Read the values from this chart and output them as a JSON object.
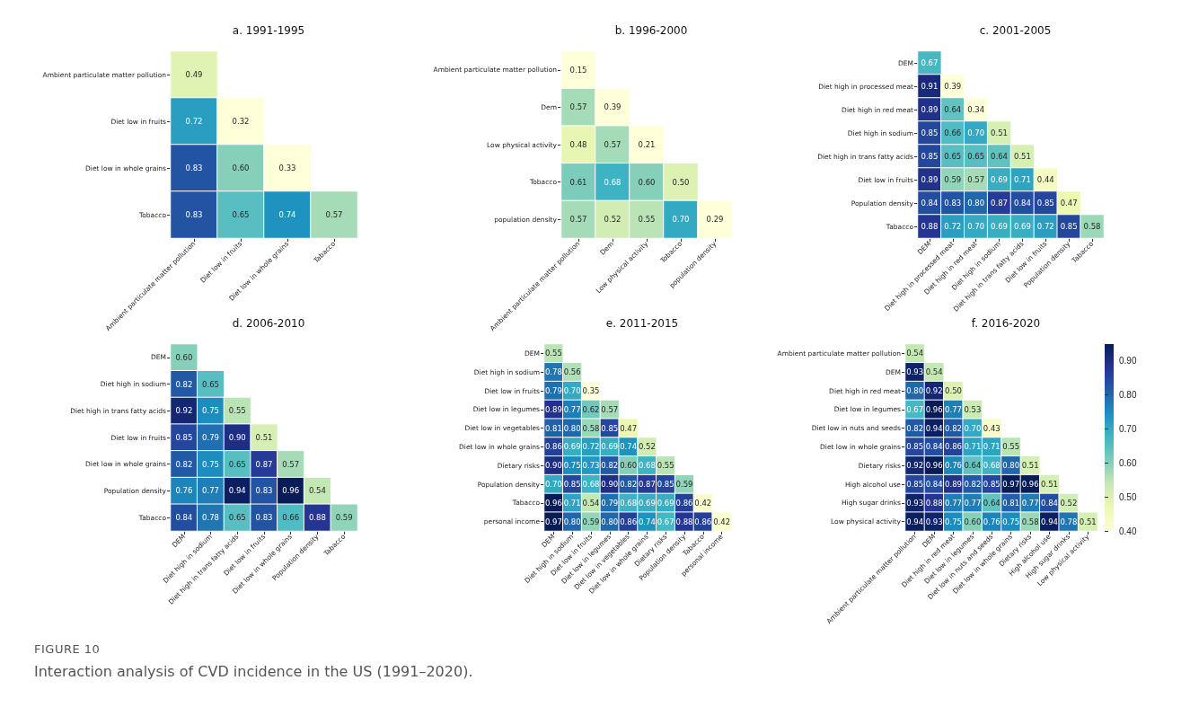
{
  "chart_data": [
    {
      "type": "heatmap",
      "title": "a. 1991-1995",
      "data_labels": true,
      "categories": [
        "Ambient particulate matter pollution",
        "Diet low in fruits",
        "Diet low in whole grains",
        "Tabacco"
      ],
      "y_categories": [
        "Ambient particulate matter pollution",
        "Diet low in fruits",
        "Diet low in whole grains",
        "Tobacco"
      ],
      "cells": [
        [
          0.49,
          null,
          null,
          null
        ],
        [
          0.72,
          0.32,
          null,
          null
        ],
        [
          0.83,
          0.6,
          0.33,
          null
        ],
        [
          0.83,
          0.65,
          0.74,
          0.57
        ]
      ],
      "cell_labels": [
        [
          "0.49",
          null,
          null,
          null
        ],
        [
          "0.72",
          "0.32",
          null,
          null
        ],
        [
          "0.83",
          "0.60",
          "0.33",
          null
        ],
        [
          "0.83",
          "0.65",
          "0.74",
          "0.57"
        ]
      ]
    },
    {
      "type": "heatmap",
      "title": "b. 1996-2000",
      "data_labels": true,
      "categories": [
        "Ambient particulate matter pollution",
        "Dem",
        "Low physical activity",
        "Tobacco",
        "population density"
      ],
      "y_categories": [
        "Ambient particulate matter pollution",
        "Dem",
        "Low physical activity",
        "Tobacco",
        "population density"
      ],
      "cells": [
        [
          0.15,
          null,
          null,
          null,
          null
        ],
        [
          0.57,
          0.39,
          null,
          null,
          null
        ],
        [
          0.48,
          0.57,
          0.21,
          null,
          null
        ],
        [
          0.61,
          0.68,
          0.6,
          0.5,
          null
        ],
        [
          0.57,
          0.52,
          0.55,
          0.7,
          0.29
        ]
      ],
      "cell_labels": [
        [
          "0.15",
          null,
          null,
          null,
          null
        ],
        [
          "0.57",
          "0.39",
          null,
          null,
          null
        ],
        [
          "0.48",
          "0.57",
          "0.21",
          null,
          null
        ],
        [
          "0.61",
          "0.68",
          "0.60",
          "0.50",
          null
        ],
        [
          "0.57",
          "0.52",
          "0.55",
          "0.70",
          "0.29"
        ]
      ]
    },
    {
      "type": "heatmap",
      "title": "c. 2001-2005",
      "data_labels": true,
      "categories": [
        "DEM",
        "Diet high in processed meat",
        "Diet high in red meat",
        "Diet high in sodium",
        "Diet high in trans fatty acids",
        "Diet low in fruits",
        "Population density",
        "Tabacco"
      ],
      "y_categories": [
        "DEM",
        "Diet high in processed meat",
        "Diet high in red meat",
        "Diet high in sodium",
        "Diet high in trans fatty acids",
        "Diet low in fruits",
        "Population density",
        "Tabacco"
      ],
      "cells": [
        [
          0.67,
          null,
          null,
          null,
          null,
          null,
          null,
          null
        ],
        [
          0.91,
          0.39,
          null,
          null,
          null,
          null,
          null,
          null
        ],
        [
          0.89,
          0.64,
          0.34,
          null,
          null,
          null,
          null,
          null
        ],
        [
          0.85,
          0.66,
          0.7,
          0.51,
          null,
          null,
          null,
          null
        ],
        [
          0.85,
          0.65,
          0.65,
          0.64,
          0.51,
          null,
          null,
          null
        ],
        [
          0.89,
          0.59,
          0.57,
          0.69,
          0.71,
          0.44,
          null,
          null
        ],
        [
          0.84,
          0.83,
          0.8,
          0.87,
          0.84,
          0.85,
          0.47,
          null
        ],
        [
          0.88,
          0.72,
          0.7,
          0.69,
          0.69,
          0.72,
          0.85,
          0.58
        ]
      ],
      "cell_labels": [
        [
          "0.67",
          null,
          null,
          null,
          null,
          null,
          null,
          null
        ],
        [
          "0.91",
          "0.39",
          null,
          null,
          null,
          null,
          null,
          null
        ],
        [
          "0.89",
          "0.64",
          "0.34",
          null,
          null,
          null,
          null,
          null
        ],
        [
          "0.85",
          "0.66",
          "0.70",
          "0.51",
          null,
          null,
          null,
          null
        ],
        [
          "0.85",
          "0.65",
          "0.65",
          "0.64",
          "0.51",
          null,
          null,
          null
        ],
        [
          "0.89",
          "0.59",
          "0.57",
          "0.69",
          "0.71",
          "0.44",
          null,
          null
        ],
        [
          "0.84",
          "0.83",
          "0.80",
          "0.87",
          "0.84",
          "0.85",
          "0.47",
          null
        ],
        [
          "0.88",
          "0.72",
          "0.70",
          "0.69",
          "0.69",
          "0.72",
          "0.85",
          "0.58"
        ]
      ]
    },
    {
      "type": "heatmap",
      "title": "d. 2006-2010",
      "data_labels": true,
      "categories": [
        "DEM",
        "Diet high in sodium",
        "Diet high in trans fatty acids",
        "Diet low in fruits",
        "Diet low in whole grains",
        "Population density",
        "Tabacco"
      ],
      "y_categories": [
        "DEM",
        "Diet high in sodium",
        "Diet high in trans fatty acids",
        "Diet low in fruits",
        "Diet low in whole grains",
        "Population density",
        "Tabacco"
      ],
      "cells": [
        [
          0.6,
          null,
          null,
          null,
          null,
          null,
          null
        ],
        [
          0.82,
          0.65,
          null,
          null,
          null,
          null,
          null
        ],
        [
          0.92,
          0.75,
          0.55,
          null,
          null,
          null,
          null
        ],
        [
          0.85,
          0.79,
          0.9,
          0.51,
          null,
          null,
          null
        ],
        [
          0.82,
          0.75,
          0.65,
          0.87,
          0.57,
          null,
          null
        ],
        [
          0.76,
          0.77,
          0.94,
          0.83,
          0.96,
          0.54,
          null
        ],
        [
          0.84,
          0.78,
          0.65,
          0.83,
          0.66,
          0.88,
          0.59
        ]
      ],
      "cell_labels": [
        [
          "0.60",
          null,
          null,
          null,
          null,
          null,
          null
        ],
        [
          "0.82",
          "0.65",
          null,
          null,
          null,
          null,
          null
        ],
        [
          "0.92",
          "0.75",
          "0.55",
          null,
          null,
          null,
          null
        ],
        [
          "0.85",
          "0.79",
          "0.90",
          "0.51",
          null,
          null,
          null
        ],
        [
          "0.82",
          "0.75",
          "0.65",
          "0.87",
          "0.57",
          null,
          null
        ],
        [
          "0.76",
          "0.77",
          "0.94",
          "0.83",
          "0.96",
          "0.54",
          null
        ],
        [
          "0.84",
          "0.78",
          "0.65",
          "0.83",
          "0.66",
          "0.88",
          "0.59"
        ]
      ]
    },
    {
      "type": "heatmap",
      "title": "e. 2011-2015",
      "data_labels": true,
      "categories": [
        "DEM",
        "Diet high in sodium",
        "Diet low in fruits",
        "Diet low in legumes",
        "Diet low in vegetables",
        "Diet low in whole grains",
        "Dietary risks",
        "Population density",
        "Tabacco",
        "personal income"
      ],
      "y_categories": [
        "DEM",
        "Diet high in sodium",
        "Diet low in fruits",
        "Diet low in legumes",
        "Diet low in vegetables",
        "Diet low in whole grains",
        "Dietary risks",
        "Population density",
        "Tabacco",
        "personal income"
      ],
      "cells": [
        [
          0.55,
          null,
          null,
          null,
          null,
          null,
          null,
          null,
          null,
          null
        ],
        [
          0.78,
          0.56,
          null,
          null,
          null,
          null,
          null,
          null,
          null,
          null
        ],
        [
          0.79,
          0.7,
          0.35,
          null,
          null,
          null,
          null,
          null,
          null,
          null
        ],
        [
          0.89,
          0.77,
          0.62,
          0.57,
          null,
          null,
          null,
          null,
          null,
          null
        ],
        [
          0.81,
          0.8,
          0.58,
          0.85,
          0.47,
          null,
          null,
          null,
          null,
          null
        ],
        [
          0.86,
          0.69,
          0.72,
          0.69,
          0.74,
          0.52,
          null,
          null,
          null,
          null
        ],
        [
          0.9,
          0.75,
          0.73,
          0.82,
          0.6,
          0.68,
          0.55,
          null,
          null,
          null
        ],
        [
          0.7,
          0.85,
          0.68,
          0.9,
          0.82,
          0.87,
          0.85,
          0.59,
          null,
          null
        ],
        [
          0.96,
          0.71,
          0.54,
          0.79,
          0.68,
          0.69,
          0.69,
          0.86,
          0.42,
          null
        ],
        [
          0.97,
          0.8,
          0.59,
          0.8,
          0.86,
          0.74,
          0.67,
          0.88,
          0.86,
          0.42
        ]
      ],
      "cell_labels": [
        [
          "0.55",
          null,
          null,
          null,
          null,
          null,
          null,
          null,
          null,
          null
        ],
        [
          "0.78",
          "0.56",
          null,
          null,
          null,
          null,
          null,
          null,
          null,
          null
        ],
        [
          "0.79",
          "0.70",
          "0.35",
          null,
          null,
          null,
          null,
          null,
          null,
          null
        ],
        [
          "0.89",
          "0.77",
          "0.62",
          "0.57",
          null,
          null,
          null,
          null,
          null,
          null
        ],
        [
          "0.81",
          "0.80",
          "0.58",
          "0.85",
          "0.47",
          null,
          null,
          null,
          null,
          null
        ],
        [
          "0.86",
          "0.69",
          "0.72",
          "0.69",
          "0.74",
          "0.52",
          null,
          null,
          null,
          null
        ],
        [
          "0.90",
          "0.75",
          "0.73",
          "0.82",
          "0.60",
          "0.68",
          "0.55",
          null,
          null,
          null
        ],
        [
          "0.70",
          "0.85",
          "0.68",
          "0.90",
          "0.82",
          "0.87",
          "0.85",
          "0.59",
          null,
          null
        ],
        [
          "0.96",
          "0.71",
          "0.54",
          "0.79",
          "0.68",
          "0.69",
          "0.69",
          "0.86",
          "0.42",
          null
        ],
        [
          "0.97",
          "0.80",
          "0.59",
          "0.80",
          "0.86",
          "0.74",
          "0.67",
          "0.88",
          "0.86",
          "0.42"
        ]
      ]
    },
    {
      "type": "heatmap",
      "title": "f. 2016-2020",
      "data_labels": true,
      "categories": [
        "Ambient particulate matter pollution",
        "DEM",
        "Diet high in red meat",
        "Diet low in legumes",
        "Diet low in nuts and seeds",
        "Diet low in whole grains",
        "Dietary risks",
        "High alcohol use",
        "High sugar drinks",
        "Low physical activity"
      ],
      "y_categories": [
        "Ambient particulate matter pollution",
        "DEM",
        "Diet high in red meat",
        "Diet low in legumes",
        "Diet low in nuts and seeds",
        "Diet low in whole grains",
        "Dietary risks",
        "High alcohol use",
        "High sugar drinks",
        "Low physical activity"
      ],
      "cells": [
        [
          0.54,
          null,
          null,
          null,
          null,
          null,
          null,
          null,
          null,
          null
        ],
        [
          0.93,
          0.54,
          null,
          null,
          null,
          null,
          null,
          null,
          null,
          null
        ],
        [
          0.8,
          0.92,
          0.5,
          null,
          null,
          null,
          null,
          null,
          null,
          null
        ],
        [
          0.67,
          0.96,
          0.77,
          0.53,
          null,
          null,
          null,
          null,
          null,
          null
        ],
        [
          0.82,
          0.94,
          0.82,
          0.7,
          0.43,
          null,
          null,
          null,
          null,
          null
        ],
        [
          0.85,
          0.84,
          0.86,
          0.71,
          0.71,
          0.55,
          null,
          null,
          null,
          null
        ],
        [
          0.92,
          0.96,
          0.76,
          0.64,
          0.68,
          0.8,
          0.51,
          null,
          null,
          null
        ],
        [
          0.85,
          0.84,
          0.89,
          0.82,
          0.85,
          0.97,
          0.96,
          0.51,
          null,
          null
        ],
        [
          0.93,
          0.88,
          0.77,
          0.77,
          0.64,
          0.81,
          0.77,
          0.84,
          0.52,
          null
        ],
        [
          0.94,
          0.93,
          0.75,
          0.6,
          0.76,
          0.75,
          0.58,
          0.94,
          0.78,
          0.51
        ]
      ],
      "cell_labels": [
        [
          "0.54",
          null,
          null,
          null,
          null,
          null,
          null,
          null,
          null,
          null
        ],
        [
          "0.93",
          "0.54",
          null,
          null,
          null,
          null,
          null,
          null,
          null,
          null
        ],
        [
          "0.80",
          "0.92",
          "0.50",
          null,
          null,
          null,
          null,
          null,
          null,
          null
        ],
        [
          "0.67",
          "0.96",
          "0.77",
          "0.53",
          null,
          null,
          null,
          null,
          null,
          null
        ],
        [
          "0.82",
          "0.94",
          "0.82",
          "0.70",
          "0.43",
          null,
          null,
          null,
          null,
          null
        ],
        [
          "0.85",
          "0.84",
          "0.86",
          "0.71",
          "0.71",
          "0.55",
          null,
          null,
          null,
          null
        ],
        [
          "0.92",
          "0.96",
          "0.76",
          "0.64",
          "0.68",
          "0.80",
          "0.51",
          null,
          null,
          null
        ],
        [
          "0.85",
          "0.84",
          "0.89",
          "0.82",
          "0.85",
          "0.97",
          "0.96",
          "0.51",
          null,
          null
        ],
        [
          "0.93",
          "0.88",
          "0.77",
          "0.77",
          "0.64",
          "0.81",
          "0.77",
          "0.84",
          "0.52",
          null
        ],
        [
          "0.94",
          "0.93",
          "0.75",
          "0.60",
          "0.76",
          "0.75",
          "0.58",
          "0.94",
          "0.78",
          "0.51"
        ]
      ],
      "clim": [
        0.4,
        0.95
      ],
      "cticks": [
        {
          "value": 0.4,
          "label": "0.40"
        },
        {
          "value": 0.5,
          "label": "0.50"
        },
        {
          "value": 0.6,
          "label": "0.60"
        },
        {
          "value": 0.7,
          "label": "0.70"
        },
        {
          "value": 0.8,
          "label": "0.80"
        },
        {
          "value": 0.9,
          "label": "0.90"
        }
      ],
      "annotations": [
        "FIGURE 10",
        "Interaction analysis of CVD incidence in the US (1991–2020)."
      ]
    }
  ]
}
